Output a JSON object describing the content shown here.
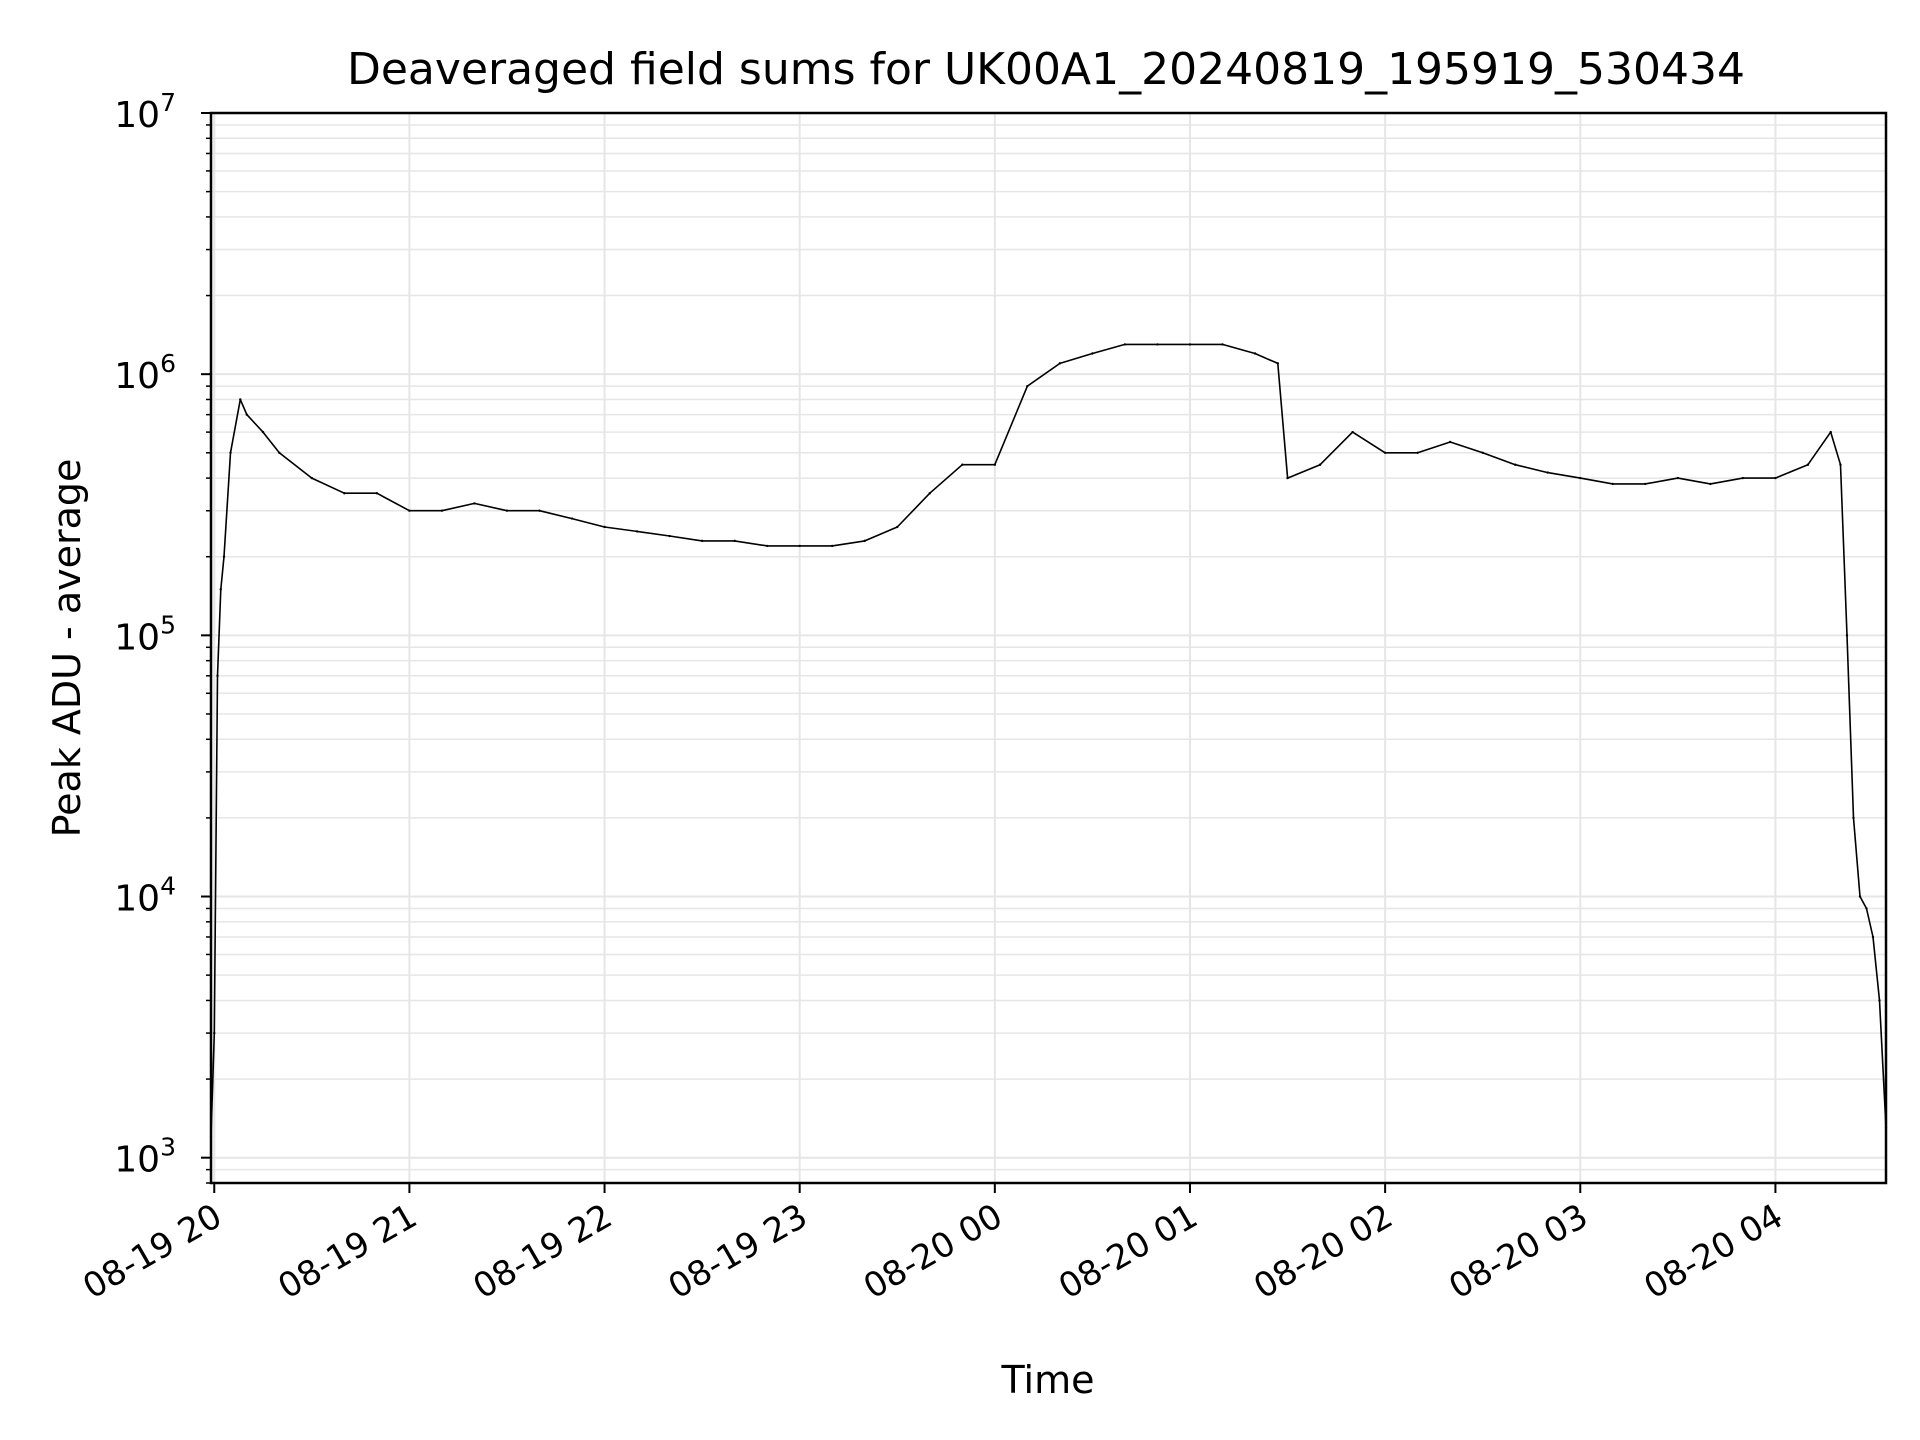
{
  "chart_data": {
    "type": "line",
    "title": "Deaveraged field sums for UK00A1_20240819_195919_530434",
    "xlabel": "Time",
    "ylabel": "Peak ADU - average",
    "yscale": "log",
    "ylim": [
      800,
      10000000
    ],
    "xlim": [
      "2024-08-19 19:59",
      "2024-08-20 04:34"
    ],
    "y_ticks": [
      {
        "value": 1000,
        "base": "10",
        "exp": "3"
      },
      {
        "value": 10000,
        "base": "10",
        "exp": "4"
      },
      {
        "value": 100000,
        "base": "10",
        "exp": "5"
      },
      {
        "value": 1000000,
        "base": "10",
        "exp": "6"
      },
      {
        "value": 10000000,
        "base": "10",
        "exp": "7"
      }
    ],
    "x_ticks": [
      {
        "value": "2024-08-19 20:00",
        "label": "08-19 20"
      },
      {
        "value": "2024-08-19 21:00",
        "label": "08-19 21"
      },
      {
        "value": "2024-08-19 22:00",
        "label": "08-19 22"
      },
      {
        "value": "2024-08-19 23:00",
        "label": "08-19 23"
      },
      {
        "value": "2024-08-20 00:00",
        "label": "08-20 00"
      },
      {
        "value": "2024-08-20 01:00",
        "label": "08-20 01"
      },
      {
        "value": "2024-08-20 02:00",
        "label": "08-20 02"
      },
      {
        "value": "2024-08-20 03:00",
        "label": "08-20 03"
      },
      {
        "value": "2024-08-20 04:00",
        "label": "08-20 04"
      }
    ],
    "grid": true,
    "line_color": "#000000",
    "grid_color": "#e6e6e6",
    "series": [
      {
        "x": [
          "2024-08-19 19:59",
          "2024-08-19 20:00",
          "2024-08-19 20:01",
          "2024-08-19 20:02",
          "2024-08-19 20:03",
          "2024-08-19 20:05",
          "2024-08-19 20:08",
          "2024-08-19 20:10",
          "2024-08-19 20:15",
          "2024-08-19 20:20",
          "2024-08-19 20:30",
          "2024-08-19 20:40",
          "2024-08-19 20:50",
          "2024-08-19 21:00",
          "2024-08-19 21:10",
          "2024-08-19 21:20",
          "2024-08-19 21:30",
          "2024-08-19 21:40",
          "2024-08-19 21:50",
          "2024-08-19 22:00",
          "2024-08-19 22:10",
          "2024-08-19 22:20",
          "2024-08-19 22:30",
          "2024-08-19 22:40",
          "2024-08-19 22:50",
          "2024-08-19 23:00",
          "2024-08-19 23:10",
          "2024-08-19 23:20",
          "2024-08-19 23:30",
          "2024-08-19 23:40",
          "2024-08-19 23:50",
          "2024-08-20 00:00",
          "2024-08-20 00:10",
          "2024-08-20 00:20",
          "2024-08-20 00:30",
          "2024-08-20 00:40",
          "2024-08-20 00:50",
          "2024-08-20 01:00",
          "2024-08-20 01:10",
          "2024-08-20 01:20",
          "2024-08-20 01:27",
          "2024-08-20 01:30",
          "2024-08-20 01:40",
          "2024-08-20 01:50",
          "2024-08-20 02:00",
          "2024-08-20 02:10",
          "2024-08-20 02:20",
          "2024-08-20 02:30",
          "2024-08-20 02:40",
          "2024-08-20 02:50",
          "2024-08-20 03:00",
          "2024-08-20 03:10",
          "2024-08-20 03:20",
          "2024-08-20 03:30",
          "2024-08-20 03:40",
          "2024-08-20 03:50",
          "2024-08-20 04:00",
          "2024-08-20 04:10",
          "2024-08-20 04:17",
          "2024-08-20 04:20",
          "2024-08-20 04:22",
          "2024-08-20 04:24",
          "2024-08-20 04:26",
          "2024-08-20 04:28",
          "2024-08-20 04:30",
          "2024-08-20 04:32",
          "2024-08-20 04:34"
        ],
        "y": [
          1200,
          3000,
          70000,
          150000,
          200000,
          500000,
          800000,
          700000,
          600000,
          500000,
          400000,
          350000,
          350000,
          300000,
          300000,
          320000,
          300000,
          300000,
          280000,
          260000,
          250000,
          240000,
          230000,
          230000,
          220000,
          220000,
          220000,
          230000,
          260000,
          350000,
          450000,
          450000,
          900000,
          1100000,
          1200000,
          1300000,
          1300000,
          1300000,
          1300000,
          1200000,
          1100000,
          400000,
          450000,
          600000,
          500000,
          500000,
          550000,
          500000,
          450000,
          420000,
          400000,
          380000,
          380000,
          400000,
          380000,
          400000,
          400000,
          450000,
          600000,
          450000,
          100000,
          20000,
          10000,
          9000,
          7000,
          4000,
          1300
        ]
      }
    ]
  }
}
